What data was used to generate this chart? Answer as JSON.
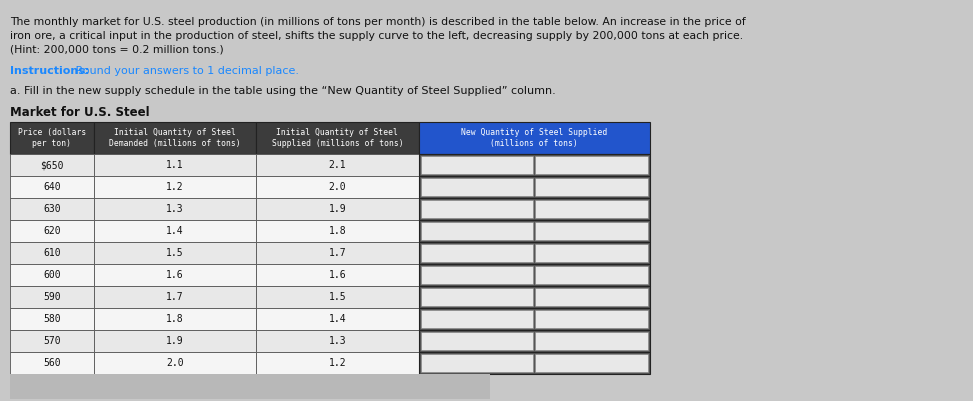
{
  "title_line1": "The monthly market for U.S. steel production (in millions of tons per month) is described in the table below. An increase in the price of",
  "title_line2": "iron ore, a critical input in the production of steel, shifts the supply curve to the left, decreasing supply by 200,000 tons at each price.",
  "title_line3": "(Hint: 200,000 tons = 0.2 million tons.)",
  "instructions_bold": "Instructions:",
  "instructions_rest": " Round your answers to 1 decimal place.",
  "part_a": "a. Fill in the new supply schedule in the table using the “New Quantity of Steel Supplied” column.",
  "table_title": "Market for U.S. Steel",
  "col_headers": [
    "Price (dollars\nper ton)",
    "Initial Quantity of Steel\nDemanded (millions of tons)",
    "Initial Quantity of Steel\nSupplied (millions of tons)",
    "New Quantity of Steel Supplied\n(millions of tons)"
  ],
  "prices": [
    "$650",
    "640",
    "630",
    "620",
    "610",
    "600",
    "590",
    "580",
    "570",
    "560"
  ],
  "demanded": [
    "1.1",
    "1.2",
    "1.3",
    "1.4",
    "1.5",
    "1.6",
    "1.7",
    "1.8",
    "1.9",
    "2.0"
  ],
  "supplied": [
    "2.1",
    "2.0",
    "1.9",
    "1.8",
    "1.7",
    "1.6",
    "1.5",
    "1.4",
    "1.3",
    "1.2"
  ],
  "new_supplied": [
    "",
    "",
    "",
    "",
    "",
    "",
    "",
    "",
    "",
    ""
  ],
  "header_bg": "#3c3c3c",
  "header_text_color": "#ffffff",
  "last_header_bg": "#2255cc",
  "row_bg": "#e8e8e8",
  "row_bg_alt": "#f5f5f5",
  "row_text_color": "#111111",
  "bg_color": "#c8c8c8",
  "title_color": "#111111",
  "instructions_color": "#1a88ff",
  "part_a_color": "#111111",
  "new_col_inner_bg": "#e0e0e0",
  "fig_width": 9.73,
  "fig_height": 4.01
}
